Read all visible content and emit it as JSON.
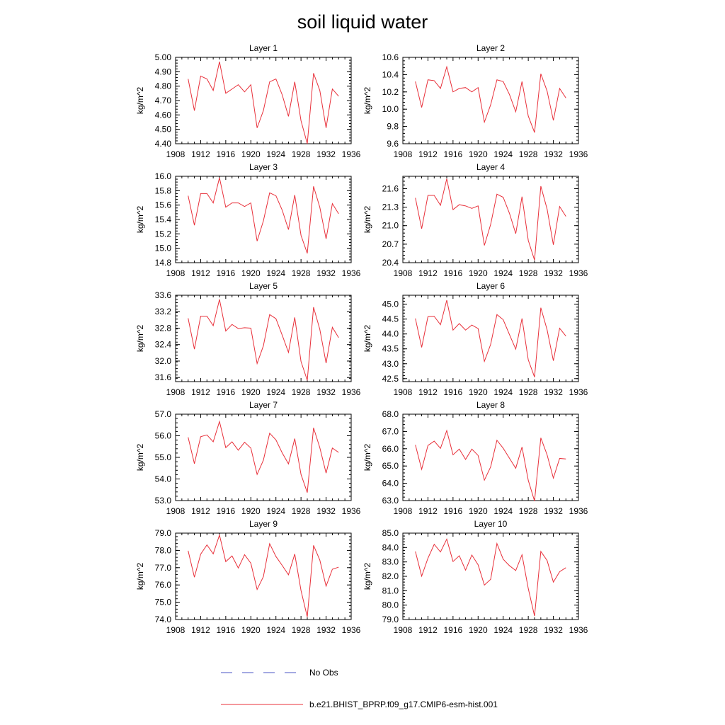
{
  "title": "soil liquid water",
  "legend": [
    {
      "label": "No Obs",
      "color": "#4a56c6",
      "style": "dashed"
    },
    {
      "label": "b.e21.BHIST_BPRP.f09_g17.CMIP6-esm-hist.001",
      "color": "#e8303a",
      "style": "solid"
    }
  ],
  "chart_data": [
    {
      "type": "line",
      "title": "Layer 1",
      "ylabel": "kg/m^2",
      "xlim": [
        1908,
        1936
      ],
      "xticks": [
        1908,
        1912,
        1916,
        1920,
        1924,
        1928,
        1932,
        1936
      ],
      "ylim": [
        4.4,
        5.0
      ],
      "yticks": [
        "4.40",
        "4.50",
        "4.60",
        "4.70",
        "4.80",
        "4.90",
        "5.00"
      ],
      "series": [
        {
          "color": "#e8303a",
          "x": [
            1910,
            1911,
            1912,
            1913,
            1914,
            1915,
            1916,
            1917,
            1918,
            1919,
            1920,
            1921,
            1922,
            1923,
            1924,
            1925,
            1926,
            1927,
            1928,
            1929,
            1930,
            1931,
            1932,
            1933,
            1934
          ],
          "values": [
            4.85,
            4.63,
            4.87,
            4.85,
            4.77,
            4.97,
            4.75,
            4.78,
            4.81,
            4.76,
            4.81,
            4.51,
            4.63,
            4.83,
            4.85,
            4.74,
            4.59,
            4.83,
            4.56,
            4.4,
            4.89,
            4.77,
            4.51,
            4.78,
            4.73
          ]
        }
      ]
    },
    {
      "type": "line",
      "title": "Layer 2",
      "ylabel": "kg/m^2",
      "xlim": [
        1908,
        1936
      ],
      "xticks": [
        1908,
        1912,
        1916,
        1920,
        1924,
        1928,
        1932,
        1936
      ],
      "ylim": [
        9.6,
        10.6
      ],
      "yticks": [
        "9.6",
        "9.8",
        "10.0",
        "10.2",
        "10.4",
        "10.6"
      ],
      "series": [
        {
          "color": "#e8303a",
          "x": [
            1910,
            1911,
            1912,
            1913,
            1914,
            1915,
            1916,
            1917,
            1918,
            1919,
            1920,
            1921,
            1922,
            1923,
            1924,
            1925,
            1926,
            1927,
            1928,
            1929,
            1930,
            1931,
            1932,
            1933,
            1934
          ],
          "values": [
            10.32,
            10.02,
            10.34,
            10.33,
            10.24,
            10.49,
            10.2,
            10.24,
            10.25,
            10.2,
            10.25,
            9.85,
            10.05,
            10.34,
            10.32,
            10.17,
            9.97,
            10.32,
            9.92,
            9.73,
            10.41,
            10.21,
            9.87,
            10.24,
            10.13
          ]
        }
      ]
    },
    {
      "type": "line",
      "title": "Layer 3",
      "ylabel": "kg/m^2",
      "xlim": [
        1908,
        1936
      ],
      "xticks": [
        1908,
        1912,
        1916,
        1920,
        1924,
        1928,
        1932,
        1936
      ],
      "ylim": [
        14.8,
        16.0
      ],
      "yticks": [
        "14.8",
        "15.0",
        "15.2",
        "15.4",
        "15.6",
        "15.8",
        "16.0"
      ],
      "series": [
        {
          "color": "#e8303a",
          "x": [
            1910,
            1911,
            1912,
            1913,
            1914,
            1915,
            1916,
            1917,
            1918,
            1919,
            1920,
            1921,
            1922,
            1923,
            1924,
            1925,
            1926,
            1927,
            1928,
            1929,
            1930,
            1931,
            1932,
            1933,
            1934
          ],
          "values": [
            15.73,
            15.32,
            15.76,
            15.76,
            15.63,
            15.98,
            15.57,
            15.63,
            15.63,
            15.58,
            15.63,
            15.1,
            15.38,
            15.77,
            15.73,
            15.53,
            15.26,
            15.74,
            15.18,
            14.93,
            15.86,
            15.57,
            15.13,
            15.62,
            15.48
          ]
        }
      ]
    },
    {
      "type": "line",
      "title": "Layer 4",
      "ylabel": "kg/m^2",
      "xlim": [
        1908,
        1936
      ],
      "xticks": [
        1908,
        1912,
        1916,
        1920,
        1924,
        1928,
        1932,
        1936
      ],
      "ylim": [
        20.4,
        21.8
      ],
      "yticks": [
        "20.4",
        "20.7",
        "21.0",
        "21.3",
        "21.6"
      ],
      "series": [
        {
          "color": "#e8303a",
          "x": [
            1910,
            1911,
            1912,
            1913,
            1914,
            1915,
            1916,
            1917,
            1918,
            1919,
            1920,
            1921,
            1922,
            1923,
            1924,
            1925,
            1926,
            1927,
            1928,
            1929,
            1930,
            1931,
            1932,
            1933,
            1934
          ],
          "values": [
            21.45,
            20.95,
            21.49,
            21.49,
            21.33,
            21.76,
            21.26,
            21.34,
            21.32,
            21.28,
            21.32,
            20.68,
            21.02,
            21.51,
            21.46,
            21.2,
            20.87,
            21.47,
            20.76,
            20.44,
            21.64,
            21.27,
            20.69,
            21.31,
            21.15
          ]
        }
      ]
    },
    {
      "type": "line",
      "title": "Layer 5",
      "ylabel": "kg/m^2",
      "xlim": [
        1908,
        1936
      ],
      "xticks": [
        1908,
        1912,
        1916,
        1920,
        1924,
        1928,
        1932,
        1936
      ],
      "ylim": [
        31.5,
        33.6
      ],
      "yticks": [
        "31.6",
        "32.0",
        "32.4",
        "32.8",
        "33.2",
        "33.6"
      ],
      "series": [
        {
          "color": "#e8303a",
          "x": [
            1910,
            1911,
            1912,
            1913,
            1914,
            1915,
            1916,
            1917,
            1918,
            1919,
            1920,
            1921,
            1922,
            1923,
            1924,
            1925,
            1926,
            1927,
            1928,
            1929,
            1930,
            1931,
            1932,
            1933,
            1934
          ],
          "values": [
            33.04,
            32.29,
            33.09,
            33.09,
            32.86,
            33.5,
            32.73,
            32.89,
            32.79,
            32.81,
            32.8,
            31.94,
            32.37,
            33.13,
            33.03,
            32.63,
            32.21,
            33.06,
            31.99,
            31.53,
            33.31,
            32.77,
            31.95,
            32.82,
            32.57
          ]
        }
      ]
    },
    {
      "type": "line",
      "title": "Layer 6",
      "ylabel": "kg/m^2",
      "xlim": [
        1908,
        1936
      ],
      "xticks": [
        1908,
        1912,
        1916,
        1920,
        1924,
        1928,
        1932,
        1936
      ],
      "ylim": [
        42.4,
        45.3
      ],
      "yticks": [
        "42.5",
        "43.0",
        "43.5",
        "44.0",
        "44.5",
        "45.0"
      ],
      "series": [
        {
          "color": "#e8303a",
          "x": [
            1910,
            1911,
            1912,
            1913,
            1914,
            1915,
            1916,
            1917,
            1918,
            1919,
            1920,
            1921,
            1922,
            1923,
            1924,
            1925,
            1926,
            1927,
            1928,
            1929,
            1930,
            1931,
            1932,
            1933,
            1934
          ],
          "values": [
            44.52,
            43.55,
            44.58,
            44.59,
            44.31,
            45.13,
            44.13,
            44.35,
            44.13,
            44.3,
            44.18,
            43.08,
            43.65,
            44.65,
            44.48,
            43.98,
            43.49,
            44.52,
            43.13,
            42.55,
            44.88,
            44.14,
            43.1,
            44.19,
            43.93
          ]
        }
      ]
    },
    {
      "type": "line",
      "title": "Layer 7",
      "ylabel": "kg/m^2",
      "xlim": [
        1908,
        1936
      ],
      "xticks": [
        1908,
        1912,
        1916,
        1920,
        1924,
        1928,
        1932,
        1936
      ],
      "ylim": [
        53.0,
        57.0
      ],
      "yticks": [
        "53.0",
        "54.0",
        "55.0",
        "56.0",
        "57.0"
      ],
      "series": [
        {
          "color": "#e8303a",
          "x": [
            1910,
            1911,
            1912,
            1913,
            1914,
            1915,
            1916,
            1917,
            1918,
            1919,
            1920,
            1921,
            1922,
            1923,
            1924,
            1925,
            1926,
            1927,
            1928,
            1929,
            1930,
            1931,
            1932,
            1933,
            1934
          ],
          "values": [
            55.93,
            54.71,
            55.96,
            56.04,
            55.72,
            56.66,
            55.45,
            55.72,
            55.33,
            55.7,
            55.43,
            54.21,
            54.87,
            56.12,
            55.81,
            55.21,
            54.7,
            55.87,
            54.21,
            53.37,
            56.37,
            55.45,
            54.27,
            55.43,
            55.23
          ]
        }
      ]
    },
    {
      "type": "line",
      "title": "Layer 8",
      "ylabel": "kg/m^2",
      "xlim": [
        1908,
        1936
      ],
      "xticks": [
        1908,
        1912,
        1916,
        1920,
        1924,
        1928,
        1932,
        1936
      ],
      "ylim": [
        63.0,
        68.0
      ],
      "yticks": [
        "63.0",
        "64.0",
        "65.0",
        "66.0",
        "67.0",
        "68.0"
      ],
      "series": [
        {
          "color": "#e8303a",
          "x": [
            1910,
            1911,
            1912,
            1913,
            1914,
            1915,
            1916,
            1917,
            1918,
            1919,
            1920,
            1921,
            1922,
            1923,
            1924,
            1925,
            1926,
            1927,
            1928,
            1929,
            1930,
            1931,
            1932,
            1933,
            1934
          ],
          "values": [
            66.22,
            64.81,
            66.19,
            66.44,
            66.02,
            67.05,
            65.65,
            65.98,
            65.38,
            65.98,
            65.61,
            64.18,
            64.95,
            66.49,
            66.03,
            65.45,
            64.87,
            66.1,
            64.17,
            62.97,
            66.63,
            65.65,
            64.3,
            65.44,
            65.41
          ]
        }
      ]
    },
    {
      "type": "line",
      "title": "Layer 9",
      "ylabel": "kg/m^2",
      "xlim": [
        1908,
        1936
      ],
      "xticks": [
        1908,
        1912,
        1916,
        1920,
        1924,
        1928,
        1932,
        1936
      ],
      "ylim": [
        74.0,
        79.0
      ],
      "yticks": [
        "74.0",
        "75.0",
        "76.0",
        "77.0",
        "78.0",
        "79.0"
      ],
      "series": [
        {
          "color": "#e8303a",
          "x": [
            1910,
            1911,
            1912,
            1913,
            1914,
            1915,
            1916,
            1917,
            1918,
            1919,
            1920,
            1921,
            1922,
            1923,
            1924,
            1925,
            1926,
            1927,
            1928,
            1929,
            1930,
            1931,
            1932,
            1933,
            1934
          ],
          "values": [
            77.98,
            76.45,
            77.78,
            78.32,
            77.8,
            78.89,
            77.35,
            77.68,
            76.98,
            77.75,
            77.26,
            75.74,
            76.48,
            78.39,
            77.65,
            77.13,
            76.59,
            77.79,
            75.68,
            74.15,
            78.29,
            77.44,
            75.93,
            76.91,
            77.03
          ]
        }
      ]
    },
    {
      "type": "line",
      "title": "Layer 10",
      "ylabel": "kg/m^2",
      "xlim": [
        1908,
        1936
      ],
      "xticks": [
        1908,
        1912,
        1916,
        1920,
        1924,
        1928,
        1932,
        1936
      ],
      "ylim": [
        79.0,
        85.0
      ],
      "yticks": [
        "79.0",
        "80.0",
        "81.0",
        "82.0",
        "83.0",
        "84.0",
        "85.0"
      ],
      "series": [
        {
          "color": "#e8303a",
          "x": [
            1910,
            1911,
            1912,
            1913,
            1914,
            1915,
            1916,
            1917,
            1918,
            1919,
            1920,
            1921,
            1922,
            1923,
            1924,
            1925,
            1926,
            1927,
            1928,
            1929,
            1930,
            1931,
            1932,
            1933,
            1934
          ],
          "values": [
            83.73,
            82.01,
            83.26,
            84.22,
            83.69,
            84.58,
            83.03,
            83.43,
            82.43,
            83.48,
            82.8,
            81.39,
            81.79,
            84.28,
            83.19,
            82.74,
            82.4,
            83.5,
            81.15,
            79.24,
            83.73,
            83.1,
            81.6,
            82.32,
            82.6
          ]
        }
      ]
    }
  ]
}
